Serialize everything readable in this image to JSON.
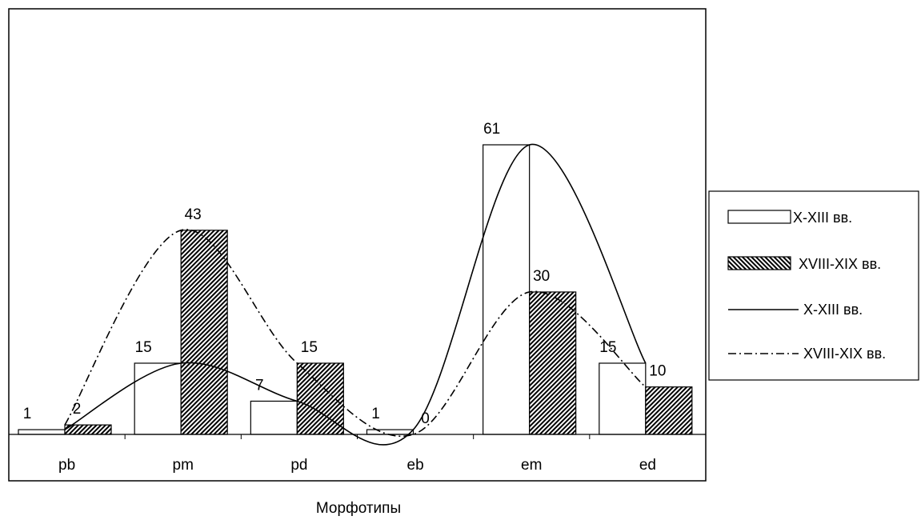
{
  "chart_data": {
    "type": "bar",
    "title": "",
    "xlabel": "Морфотипы",
    "ylabel": "",
    "categories": [
      "pb",
      "pm",
      "pd",
      "eb",
      "em",
      "ed"
    ],
    "ylim": [
      0,
      61
    ],
    "grid": false,
    "legend_position": "right",
    "series": [
      {
        "name": "X-XIII вв.",
        "kind": "bar",
        "fill": "#ffffff",
        "values": [
          1,
          15,
          7,
          1,
          61,
          15
        ]
      },
      {
        "name": "XVIII-XIX вв.",
        "kind": "bar",
        "fill": "hatched",
        "values": [
          2,
          43,
          15,
          0,
          30,
          10
        ]
      }
    ],
    "line_series": [
      {
        "name": "X-XIII вв.",
        "style": "solid",
        "values": [
          1,
          15,
          7,
          1,
          61,
          15
        ]
      },
      {
        "name": "XVIII-XIX вв.",
        "style": "dash-dot",
        "values": [
          2,
          43,
          15,
          0,
          30,
          10
        ]
      }
    ],
    "colors": {
      "stroke": "#000000",
      "background": "#ffffff"
    }
  }
}
